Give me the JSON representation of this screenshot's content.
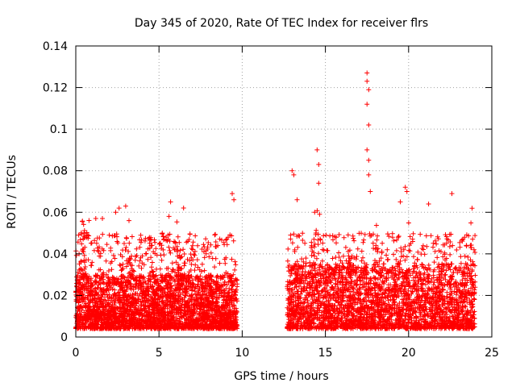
{
  "chart_data": {
    "type": "scatter",
    "title": "Day 345 of 2020, Rate Of TEC Index for receiver flrs",
    "xlabel": "GPS time / hours",
    "ylabel": "ROTI / TECUs",
    "xlim": [
      0,
      25
    ],
    "ylim": [
      0,
      0.14
    ],
    "xticks": [
      0,
      5,
      10,
      15,
      20,
      25
    ],
    "xtick_labels": [
      "0",
      "5",
      "10",
      "15",
      "20",
      "25"
    ],
    "yticks": [
      0,
      0.02,
      0.04,
      0.06,
      0.08,
      0.1,
      0.12,
      0.14
    ],
    "ytick_labels": [
      "0",
      "0.02",
      "0.04",
      "0.06",
      "0.08",
      "0.1",
      "0.12",
      "0.14"
    ],
    "grid": true,
    "marker": "+",
    "marker_color": "#ff0000",
    "series": [
      {
        "name": "ROTI",
        "segments": [
          {
            "x_range": [
              0.0,
              9.7
            ],
            "y_base": [
              0.004,
              0.03
            ],
            "y_peak": 0.069
          },
          {
            "x_range": [
              12.7,
              24.0
            ],
            "y_base": [
              0.004,
              0.035
            ],
            "y_peak": 0.127
          }
        ],
        "outliers": [
          {
            "x": 0.2,
            "y": 0.04
          },
          {
            "x": 0.5,
            "y": 0.05
          },
          {
            "x": 1.2,
            "y": 0.057
          },
          {
            "x": 1.6,
            "y": 0.057
          },
          {
            "x": 2.4,
            "y": 0.06
          },
          {
            "x": 2.6,
            "y": 0.062
          },
          {
            "x": 3.0,
            "y": 0.063
          },
          {
            "x": 3.2,
            "y": 0.056
          },
          {
            "x": 5.2,
            "y": 0.05
          },
          {
            "x": 5.6,
            "y": 0.058
          },
          {
            "x": 5.7,
            "y": 0.065
          },
          {
            "x": 9.4,
            "y": 0.069
          },
          {
            "x": 9.5,
            "y": 0.066
          },
          {
            "x": 13.0,
            "y": 0.08
          },
          {
            "x": 13.1,
            "y": 0.078
          },
          {
            "x": 13.3,
            "y": 0.066
          },
          {
            "x": 14.5,
            "y": 0.09
          },
          {
            "x": 14.6,
            "y": 0.083
          },
          {
            "x": 14.6,
            "y": 0.074
          },
          {
            "x": 17.5,
            "y": 0.127
          },
          {
            "x": 17.5,
            "y": 0.123
          },
          {
            "x": 17.6,
            "y": 0.119
          },
          {
            "x": 17.5,
            "y": 0.112
          },
          {
            "x": 17.6,
            "y": 0.102
          },
          {
            "x": 17.5,
            "y": 0.09
          },
          {
            "x": 17.6,
            "y": 0.085
          },
          {
            "x": 17.6,
            "y": 0.078
          },
          {
            "x": 17.7,
            "y": 0.07
          },
          {
            "x": 19.8,
            "y": 0.072
          },
          {
            "x": 19.9,
            "y": 0.07
          },
          {
            "x": 19.5,
            "y": 0.065
          },
          {
            "x": 22.6,
            "y": 0.069
          },
          {
            "x": 21.2,
            "y": 0.064
          }
        ]
      }
    ]
  }
}
